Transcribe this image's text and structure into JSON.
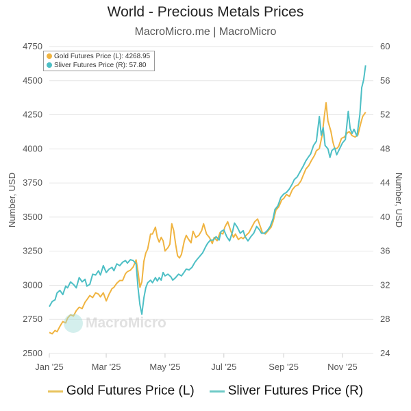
{
  "header": {
    "title": "World - Precious Metals Prices",
    "subtitle": "MacroMicro.me | MacroMicro"
  },
  "tooltip": {
    "gold": "Gold Futures Price (L): 4268.95",
    "silver": "Sliver Futures Price (R): 57.80"
  },
  "watermark": "MacroMicro",
  "colors": {
    "gold": "#f0b441",
    "silver": "#4dbfc5",
    "grid": "#e6e6e6"
  },
  "chart_data": {
    "type": "line",
    "title": "World - Precious Metals Prices",
    "subtitle": "MacroMicro.me | MacroMicro",
    "xlabel": "",
    "ylabel_left": "Number, USD",
    "ylabel_right": "Number, USD",
    "xlim": [
      "2025-01-01",
      "2025-12-03"
    ],
    "ylim_left": [
      2500,
      4750
    ],
    "ylim_right": [
      24,
      60
    ],
    "yticks_left": [
      2500,
      2750,
      3000,
      3250,
      3500,
      3750,
      4000,
      4250,
      4500,
      4750
    ],
    "yticks_right": [
      24,
      28,
      32,
      36,
      40,
      44,
      48,
      52,
      56,
      60
    ],
    "xticks": [
      {
        "date": "2025-01-01",
        "label": "Jan '25"
      },
      {
        "date": "2025-03-01",
        "label": "Mar '25"
      },
      {
        "date": "2025-05-01",
        "label": "May '25"
      },
      {
        "date": "2025-07-01",
        "label": "Jul '25"
      },
      {
        "date": "2025-09-01",
        "label": "Sep '25"
      },
      {
        "date": "2025-11-01",
        "label": "Nov '25"
      }
    ],
    "grid": true,
    "legend_position": "bottom",
    "series": [
      {
        "name": "Gold Futures Price (L)",
        "axis": "left",
        "color": "#f0b441",
        "points": [
          [
            "2025-01-01",
            2654
          ],
          [
            "2025-01-04",
            2644
          ],
          [
            "2025-01-07",
            2669
          ],
          [
            "2025-01-09",
            2659
          ],
          [
            "2025-01-12",
            2699
          ],
          [
            "2025-01-15",
            2734
          ],
          [
            "2025-01-18",
            2724
          ],
          [
            "2025-01-20",
            2759
          ],
          [
            "2025-01-23",
            2784
          ],
          [
            "2025-01-26",
            2774
          ],
          [
            "2025-01-29",
            2814
          ],
          [
            "2025-02-01",
            2839
          ],
          [
            "2025-02-04",
            2829
          ],
          [
            "2025-02-07",
            2875
          ],
          [
            "2025-02-09",
            2895
          ],
          [
            "2025-02-12",
            2925
          ],
          [
            "2025-02-15",
            2910
          ],
          [
            "2025-02-18",
            2945
          ],
          [
            "2025-02-21",
            2935
          ],
          [
            "2025-02-23",
            2915
          ],
          [
            "2025-02-26",
            2945
          ],
          [
            "2025-03-01",
            2885
          ],
          [
            "2025-03-04",
            2935
          ],
          [
            "2025-03-07",
            2975
          ],
          [
            "2025-03-09",
            2985
          ],
          [
            "2025-03-12",
            3015
          ],
          [
            "2025-03-15",
            3035
          ],
          [
            "2025-03-18",
            3035
          ],
          [
            "2025-03-21",
            3085
          ],
          [
            "2025-03-23",
            3100
          ],
          [
            "2025-03-26",
            3110
          ],
          [
            "2025-03-29",
            3135
          ],
          [
            "2025-04-01",
            3186
          ],
          [
            "2025-04-03",
            3100
          ],
          [
            "2025-04-05",
            2985
          ],
          [
            "2025-04-07",
            3025
          ],
          [
            "2025-04-09",
            3175
          ],
          [
            "2025-04-11",
            3236
          ],
          [
            "2025-04-13",
            3266
          ],
          [
            "2025-04-16",
            3376
          ],
          [
            "2025-04-18",
            3376
          ],
          [
            "2025-04-21",
            3426
          ],
          [
            "2025-04-23",
            3351
          ],
          [
            "2025-04-25",
            3316
          ],
          [
            "2025-04-27",
            3351
          ],
          [
            "2025-04-29",
            3326
          ],
          [
            "2025-05-01",
            3251
          ],
          [
            "2025-05-04",
            3276
          ],
          [
            "2025-05-06",
            3301
          ],
          [
            "2025-05-08",
            3451
          ],
          [
            "2025-05-10",
            3401
          ],
          [
            "2025-05-12",
            3301
          ],
          [
            "2025-05-14",
            3216
          ],
          [
            "2025-05-16",
            3200
          ],
          [
            "2025-05-18",
            3226
          ],
          [
            "2025-05-21",
            3326
          ],
          [
            "2025-05-23",
            3366
          ],
          [
            "2025-05-25",
            3341
          ],
          [
            "2025-05-28",
            3311
          ],
          [
            "2025-05-30",
            3396
          ],
          [
            "2025-06-02",
            3351
          ],
          [
            "2025-06-05",
            3366
          ],
          [
            "2025-06-08",
            3401
          ],
          [
            "2025-06-10",
            3451
          ],
          [
            "2025-06-13",
            3376
          ],
          [
            "2025-06-16",
            3351
          ],
          [
            "2025-06-19",
            3306
          ],
          [
            "2025-06-21",
            3351
          ],
          [
            "2025-06-24",
            3326
          ],
          [
            "2025-06-27",
            3386
          ],
          [
            "2025-06-30",
            3376
          ],
          [
            "2025-07-02",
            3426
          ],
          [
            "2025-07-05",
            3466
          ],
          [
            "2025-07-08",
            3401
          ],
          [
            "2025-07-11",
            3351
          ],
          [
            "2025-07-13",
            3376
          ],
          [
            "2025-07-16",
            3336
          ],
          [
            "2025-07-19",
            3351
          ],
          [
            "2025-07-21",
            3341
          ],
          [
            "2025-07-24",
            3366
          ],
          [
            "2025-07-27",
            3386
          ],
          [
            "2025-07-30",
            3426
          ],
          [
            "2025-08-02",
            3466
          ],
          [
            "2025-08-05",
            3486
          ],
          [
            "2025-08-08",
            3426
          ],
          [
            "2025-08-10",
            3386
          ],
          [
            "2025-08-13",
            3376
          ],
          [
            "2025-08-16",
            3401
          ],
          [
            "2025-08-19",
            3426
          ],
          [
            "2025-08-21",
            3466
          ],
          [
            "2025-08-24",
            3551
          ],
          [
            "2025-08-27",
            3576
          ],
          [
            "2025-08-30",
            3626
          ],
          [
            "2025-09-01",
            3636
          ],
          [
            "2025-09-04",
            3666
          ],
          [
            "2025-09-07",
            3651
          ],
          [
            "2025-09-10",
            3701
          ],
          [
            "2025-09-13",
            3726
          ],
          [
            "2025-09-16",
            3736
          ],
          [
            "2025-09-19",
            3766
          ],
          [
            "2025-09-21",
            3801
          ],
          [
            "2025-09-24",
            3852
          ],
          [
            "2025-09-27",
            3877
          ],
          [
            "2025-09-30",
            3917
          ],
          [
            "2025-10-03",
            3952
          ],
          [
            "2025-10-05",
            3987
          ],
          [
            "2025-10-08",
            4002
          ],
          [
            "2025-10-11",
            4102
          ],
          [
            "2025-10-13",
            4228
          ],
          [
            "2025-10-15",
            4338
          ],
          [
            "2025-10-17",
            4203
          ],
          [
            "2025-10-20",
            4128
          ],
          [
            "2025-10-22",
            4052
          ],
          [
            "2025-10-24",
            4002
          ],
          [
            "2025-10-26",
            4002
          ],
          [
            "2025-10-28",
            4017
          ],
          [
            "2025-10-31",
            4077
          ],
          [
            "2025-11-03",
            4087
          ],
          [
            "2025-11-06",
            4117
          ],
          [
            "2025-11-08",
            4127
          ],
          [
            "2025-11-11",
            4097
          ],
          [
            "2025-11-14",
            4087
          ],
          [
            "2025-11-17",
            4102
          ],
          [
            "2025-11-20",
            4188
          ],
          [
            "2025-11-22",
            4238
          ],
          [
            "2025-11-25",
            4269
          ]
        ]
      },
      {
        "name": "Sliver Futures Price (R)",
        "axis": "right",
        "color": "#4dbfc5",
        "points": [
          [
            "2025-01-01",
            29.5
          ],
          [
            "2025-01-04",
            30.1
          ],
          [
            "2025-01-07",
            30.3
          ],
          [
            "2025-01-09",
            31.1
          ],
          [
            "2025-01-12",
            31.4
          ],
          [
            "2025-01-15",
            30.9
          ],
          [
            "2025-01-18",
            31.9
          ],
          [
            "2025-01-20",
            31.7
          ],
          [
            "2025-01-23",
            32.4
          ],
          [
            "2025-01-26",
            32.1
          ],
          [
            "2025-01-29",
            31.7
          ],
          [
            "2025-02-01",
            32.9
          ],
          [
            "2025-02-04",
            32.4
          ],
          [
            "2025-02-07",
            32.7
          ],
          [
            "2025-02-09",
            31.9
          ],
          [
            "2025-02-12",
            32.1
          ],
          [
            "2025-02-15",
            33.3
          ],
          [
            "2025-02-18",
            33.2
          ],
          [
            "2025-02-21",
            33.7
          ],
          [
            "2025-02-23",
            33.2
          ],
          [
            "2025-02-26",
            34.3
          ],
          [
            "2025-03-01",
            33.5
          ],
          [
            "2025-03-04",
            33.9
          ],
          [
            "2025-03-07",
            34.1
          ],
          [
            "2025-03-09",
            33.7
          ],
          [
            "2025-03-12",
            34.5
          ],
          [
            "2025-03-15",
            34.3
          ],
          [
            "2025-03-18",
            34.7
          ],
          [
            "2025-03-21",
            34.9
          ],
          [
            "2025-03-23",
            34.6
          ],
          [
            "2025-03-26",
            35.0
          ],
          [
            "2025-03-29",
            34.9
          ],
          [
            "2025-04-01",
            34.5
          ],
          [
            "2025-04-03",
            31.7
          ],
          [
            "2025-04-05",
            29.7
          ],
          [
            "2025-04-07",
            28.6
          ],
          [
            "2025-04-09",
            30.5
          ],
          [
            "2025-04-11",
            31.7
          ],
          [
            "2025-04-13",
            32.3
          ],
          [
            "2025-04-16",
            32.6
          ],
          [
            "2025-04-18",
            32.3
          ],
          [
            "2025-04-21",
            32.9
          ],
          [
            "2025-04-23",
            32.5
          ],
          [
            "2025-04-25",
            32.9
          ],
          [
            "2025-04-27",
            32.6
          ],
          [
            "2025-04-29",
            33.5
          ],
          [
            "2025-05-01",
            33.1
          ],
          [
            "2025-05-04",
            33.3
          ],
          [
            "2025-05-07",
            33.0
          ],
          [
            "2025-05-09",
            32.6
          ],
          [
            "2025-05-12",
            32.9
          ],
          [
            "2025-05-15",
            33.3
          ],
          [
            "2025-05-18",
            33.1
          ],
          [
            "2025-05-20",
            33.4
          ],
          [
            "2025-05-23",
            33.9
          ],
          [
            "2025-05-26",
            33.8
          ],
          [
            "2025-05-29",
            34.1
          ],
          [
            "2025-06-01",
            34.7
          ],
          [
            "2025-06-03",
            35.0
          ],
          [
            "2025-06-06",
            35.4
          ],
          [
            "2025-06-09",
            35.8
          ],
          [
            "2025-06-12",
            36.5
          ],
          [
            "2025-06-14",
            36.9
          ],
          [
            "2025-06-17",
            37.3
          ],
          [
            "2025-06-20",
            37.3
          ],
          [
            "2025-06-23",
            37.7
          ],
          [
            "2025-06-26",
            37.3
          ],
          [
            "2025-06-28",
            38.3
          ],
          [
            "2025-07-01",
            38.5
          ],
          [
            "2025-07-04",
            37.7
          ],
          [
            "2025-07-07",
            37.2
          ],
          [
            "2025-07-10",
            38.3
          ],
          [
            "2025-07-12",
            39.3
          ],
          [
            "2025-07-15",
            38.8
          ],
          [
            "2025-07-18",
            38.1
          ],
          [
            "2025-07-21",
            38.4
          ],
          [
            "2025-07-23",
            37.7
          ],
          [
            "2025-07-26",
            37.2
          ],
          [
            "2025-07-29",
            37.7
          ],
          [
            "2025-08-01",
            38.1
          ],
          [
            "2025-08-04",
            38.9
          ],
          [
            "2025-08-07",
            38.5
          ],
          [
            "2025-08-09",
            38.1
          ],
          [
            "2025-08-12",
            38.1
          ],
          [
            "2025-08-15",
            38.4
          ],
          [
            "2025-08-18",
            38.9
          ],
          [
            "2025-08-21",
            39.8
          ],
          [
            "2025-08-23",
            40.9
          ],
          [
            "2025-08-26",
            41.3
          ],
          [
            "2025-08-29",
            42.3
          ],
          [
            "2025-09-01",
            42.7
          ],
          [
            "2025-09-04",
            42.9
          ],
          [
            "2025-09-07",
            43.3
          ],
          [
            "2025-09-10",
            43.9
          ],
          [
            "2025-09-12",
            44.4
          ],
          [
            "2025-09-15",
            44.7
          ],
          [
            "2025-09-18",
            45.3
          ],
          [
            "2025-09-21",
            45.9
          ],
          [
            "2025-09-24",
            46.6
          ],
          [
            "2025-09-27",
            47.1
          ],
          [
            "2025-09-29",
            47.4
          ],
          [
            "2025-10-02",
            48.4
          ],
          [
            "2025-10-05",
            48.9
          ],
          [
            "2025-10-08",
            51.8
          ],
          [
            "2025-10-10",
            49.6
          ],
          [
            "2025-10-12",
            50.5
          ],
          [
            "2025-10-14",
            48.4
          ],
          [
            "2025-10-17",
            48.0
          ],
          [
            "2025-10-19",
            47.0
          ],
          [
            "2025-10-21",
            47.8
          ],
          [
            "2025-10-24",
            48.1
          ],
          [
            "2025-10-26",
            47.3
          ],
          [
            "2025-10-29",
            48.0
          ],
          [
            "2025-11-01",
            48.7
          ],
          [
            "2025-11-04",
            49.1
          ],
          [
            "2025-11-07",
            52.4
          ],
          [
            "2025-11-09",
            50.4
          ],
          [
            "2025-11-11",
            49.8
          ],
          [
            "2025-11-13",
            50.3
          ],
          [
            "2025-11-16",
            49.5
          ],
          [
            "2025-11-19",
            52.0
          ],
          [
            "2025-11-21",
            55.2
          ],
          [
            "2025-11-23",
            56.1
          ],
          [
            "2025-11-25",
            57.8
          ]
        ]
      }
    ]
  },
  "legend": [
    {
      "label": "Gold Futures Price (L)"
    },
    {
      "label": "Sliver Futures Price (R)"
    }
  ]
}
